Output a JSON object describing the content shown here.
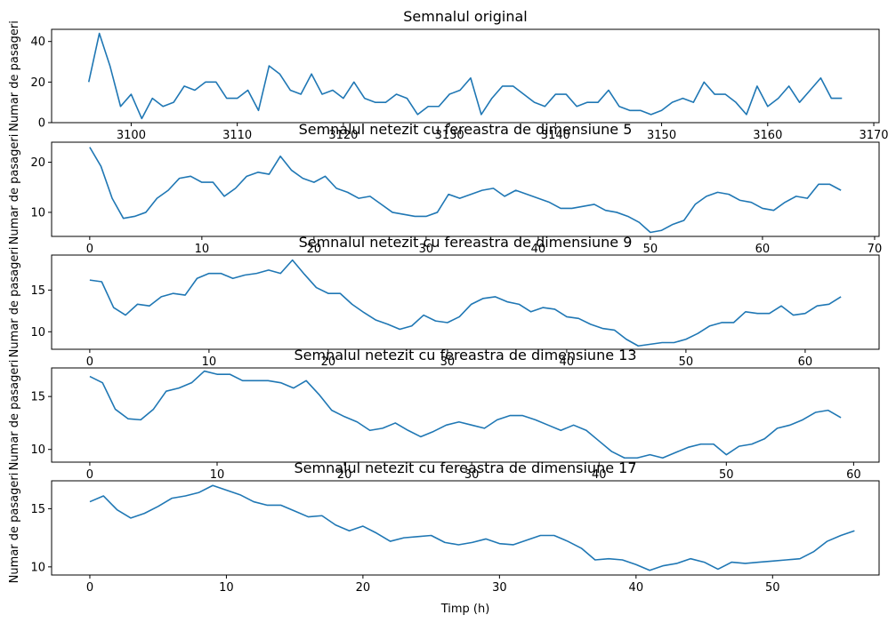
{
  "colors": {
    "series": "#1f77b4"
  },
  "chart_data": [
    {
      "type": "line",
      "title": "Semnalul original",
      "xlabel": "",
      "ylabel": "Numar de pasageri",
      "xlim": [
        3092.5,
        3170.5
      ],
      "ylim": [
        0,
        46
      ],
      "xticks": [
        3100,
        3110,
        3120,
        3130,
        3140,
        3150,
        3160,
        3170
      ],
      "yticks": [
        0,
        20,
        40
      ],
      "grid": false,
      "series": [
        {
          "x0": 3096,
          "values": [
            20,
            44,
            28,
            8,
            14,
            2,
            12,
            8,
            10,
            18,
            16,
            20,
            20,
            12,
            12,
            16,
            6,
            28,
            24,
            16,
            14,
            24,
            14,
            16,
            12,
            20,
            12,
            10,
            10,
            14,
            12,
            4,
            8,
            8,
            14,
            16,
            22,
            4,
            12,
            18,
            18,
            14,
            10,
            8,
            14,
            14,
            8,
            10,
            10,
            16,
            8,
            6,
            6,
            4,
            6,
            10,
            12,
            10,
            20,
            14,
            14,
            10,
            4,
            18,
            8,
            12,
            18,
            10,
            16,
            22,
            12,
            12
          ]
        }
      ]
    },
    {
      "type": "line",
      "title": "Semnalul netezit cu fereastra de dimensiune 5",
      "xlabel": "",
      "ylabel": "Numar de pasageri",
      "xlim": [
        -3.4,
        70.4
      ],
      "ylim": [
        5.2,
        24
      ],
      "xticks": [
        0,
        10,
        20,
        30,
        40,
        50,
        60,
        70
      ],
      "yticks": [
        10,
        20
      ],
      "grid": false,
      "series": [
        {
          "x0": 0,
          "values": [
            23,
            19.2,
            12.8,
            8.8,
            9.2,
            10,
            12.8,
            14.4,
            16.8,
            17.2,
            16,
            16,
            13.2,
            14.8,
            17.2,
            18,
            17.6,
            21.2,
            18.4,
            16.8,
            16,
            17.2,
            14.8,
            14,
            12.8,
            13.2,
            11.6,
            10,
            9.6,
            9.2,
            9.2,
            10,
            13.6,
            12.8,
            13.6,
            14.4,
            14.8,
            13.2,
            14.4,
            13.6,
            12.8,
            12,
            10.8,
            10.8,
            11.2,
            11.6,
            10.4,
            10,
            9.2,
            8,
            6,
            6.4,
            7.6,
            8.4,
            11.6,
            13.2,
            14,
            13.6,
            12.4,
            12,
            10.8,
            10.4,
            12,
            13.2,
            12.8,
            15.6,
            15.6,
            14.4
          ]
        }
      ]
    },
    {
      "type": "line",
      "title": "Semnalul netezit cu fereastra de dimensiune 9",
      "xlabel": "",
      "ylabel": "Numar de pasageri",
      "xlim": [
        -3.2,
        66.2
      ],
      "ylim": [
        7.9,
        19.2
      ],
      "xticks": [
        0,
        10,
        20,
        30,
        40,
        50,
        60
      ],
      "yticks": [
        10,
        15
      ],
      "grid": false,
      "series": [
        {
          "x0": 0,
          "values": [
            16.2,
            16,
            12.9,
            12,
            13.3,
            13.1,
            14.2,
            14.6,
            14.4,
            16.4,
            17,
            17,
            16.4,
            16.8,
            17,
            17.4,
            17,
            18.6,
            16.9,
            15.3,
            14.6,
            14.6,
            13.3,
            12.3,
            11.4,
            10.9,
            10.3,
            10.7,
            12,
            11.3,
            11.1,
            11.8,
            13.3,
            14,
            14.2,
            13.6,
            13.3,
            12.4,
            12.9,
            12.7,
            11.8,
            11.6,
            10.9,
            10.4,
            10.2,
            9.1,
            8.3,
            8.5,
            8.7,
            8.7,
            9.1,
            9.8,
            10.7,
            11.1,
            11.1,
            12.4,
            12.2,
            12.2,
            13.1,
            12,
            12.2,
            13.1,
            13.3,
            14.2
          ]
        }
      ]
    },
    {
      "type": "line",
      "title": "Semnalul netezit cu fereastra de dimensiune 13",
      "xlabel": "",
      "ylabel": "Numar de pasageri",
      "xlim": [
        -3,
        62
      ],
      "ylim": [
        8.8,
        17.7
      ],
      "xticks": [
        0,
        10,
        20,
        30,
        40,
        50,
        60
      ],
      "yticks": [
        10,
        15
      ],
      "grid": false,
      "series": [
        {
          "x0": 0,
          "values": [
            16.9,
            16.3,
            13.8,
            12.9,
            12.8,
            13.8,
            15.5,
            15.8,
            16.3,
            17.4,
            17.1,
            17.1,
            16.5,
            16.5,
            16.5,
            16.3,
            15.8,
            16.5,
            15.2,
            13.7,
            13.1,
            12.6,
            11.8,
            12,
            12.5,
            11.8,
            11.2,
            11.7,
            12.3,
            12.6,
            12.3,
            12,
            12.8,
            13.2,
            13.2,
            12.8,
            12.3,
            11.8,
            12.3,
            11.8,
            10.8,
            9.8,
            9.2,
            9.2,
            9.5,
            9.2,
            9.7,
            10.2,
            10.5,
            10.5,
            9.5,
            10.3,
            10.5,
            11,
            12,
            12.3,
            12.8,
            13.5,
            13.7,
            13
          ]
        }
      ]
    },
    {
      "type": "line",
      "title": "Semnalul netezit cu fereastra de dimensiune 17",
      "xlabel": "Timp (h)",
      "ylabel": "Numar de pasageri",
      "xlim": [
        -2.8,
        57.8
      ],
      "ylim": [
        9.3,
        17.4
      ],
      "xticks": [
        0,
        10,
        20,
        30,
        40,
        50
      ],
      "yticks": [
        10,
        15
      ],
      "grid": false,
      "series": [
        {
          "x0": 0,
          "values": [
            15.6,
            16.1,
            14.9,
            14.2,
            14.6,
            15.2,
            15.9,
            16.1,
            16.4,
            17,
            16.6,
            16.2,
            15.6,
            15.3,
            15.3,
            14.8,
            14.3,
            14.4,
            13.6,
            13.1,
            13.5,
            12.9,
            12.2,
            12.5,
            12.6,
            12.7,
            12.1,
            11.9,
            12.1,
            12.4,
            12,
            11.9,
            12.3,
            12.7,
            12.7,
            12.2,
            11.6,
            10.6,
            10.7,
            10.6,
            10.2,
            9.7,
            10.1,
            10.3,
            10.7,
            10.4,
            9.8,
            10.4,
            10.3,
            10.4,
            10.5,
            10.6,
            10.7,
            11.3,
            12.2,
            12.7,
            13.1
          ]
        }
      ]
    }
  ]
}
